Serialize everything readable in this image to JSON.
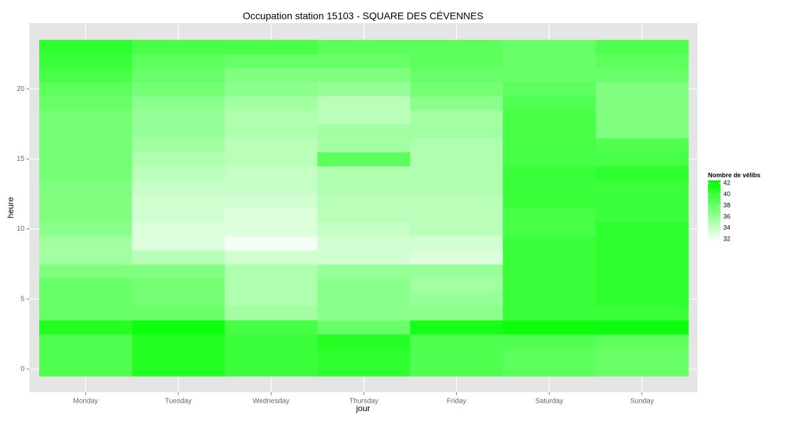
{
  "chart_data": {
    "type": "heatmap",
    "title": "Occupation station 15103 - SQUARE DES CÉVENNES",
    "x_label": "jour",
    "y_label": "heure",
    "categories": [
      "Monday",
      "Tuesday",
      "Wednesday",
      "Thursday",
      "Friday",
      "Saturday",
      "Sunday"
    ],
    "y": [
      0,
      1,
      2,
      3,
      4,
      5,
      6,
      7,
      8,
      9,
      10,
      11,
      12,
      13,
      14,
      15,
      16,
      17,
      18,
      19,
      20,
      21,
      22,
      23
    ],
    "values": [
      [
        39,
        39,
        39,
        41,
        38,
        38,
        38,
        37,
        35.5,
        35.5,
        36.5,
        37,
        37,
        37,
        37.5,
        37.5,
        37.5,
        37.5,
        37.5,
        38,
        38.5,
        39.5,
        40,
        40.5
      ],
      [
        41,
        41,
        41,
        42,
        38,
        37.5,
        37.5,
        37,
        34.5,
        33,
        33,
        33.5,
        33.5,
        34,
        34.5,
        35,
        35.5,
        36,
        36,
        36.5,
        37.5,
        38,
        38.5,
        39.5
      ],
      [
        40,
        40,
        40,
        39.5,
        35.5,
        35,
        35,
        35,
        33.5,
        32,
        33,
        33,
        33.5,
        34,
        34,
        34.5,
        34.5,
        35,
        35,
        35.5,
        36.5,
        37,
        38,
        39.5
      ],
      [
        40.5,
        40.5,
        41,
        38,
        36.5,
        36.5,
        36.5,
        36,
        33.5,
        33.5,
        34,
        34.5,
        34.5,
        35,
        35,
        38.5,
        35.5,
        35.5,
        34.5,
        34.5,
        36,
        37,
        38,
        38.5
      ],
      [
        39,
        39,
        39,
        41.5,
        36.5,
        36,
        35.5,
        36,
        33,
        33.5,
        34.5,
        34.5,
        34.5,
        35,
        35,
        35,
        35,
        35.5,
        35.5,
        36.5,
        37.5,
        38,
        38.5,
        38.5
      ],
      [
        38.5,
        38.5,
        39,
        42,
        40,
        40,
        40,
        40,
        40,
        40,
        39.5,
        39.5,
        40,
        40,
        40,
        39.5,
        39.5,
        39.5,
        39.5,
        39,
        38.5,
        38,
        38,
        38
      ],
      [
        38,
        38,
        38.5,
        42,
        40,
        40.5,
        40.5,
        40.5,
        40.5,
        40.5,
        40.5,
        40,
        40,
        40,
        40.5,
        39.5,
        39,
        37,
        37,
        37,
        37,
        38,
        38.5,
        39
      ]
    ],
    "ylim": [
      -0.5,
      23.5
    ],
    "yticks": [
      0,
      5,
      10,
      15,
      20
    ],
    "grid": true,
    "color_low": "#ffffff",
    "color_high": "#00ff00",
    "legend_title": "Nombre de vélibs",
    "clim": [
      31.5,
      42.5
    ],
    "cticks": [
      32,
      34,
      36,
      38,
      40,
      42
    ]
  }
}
